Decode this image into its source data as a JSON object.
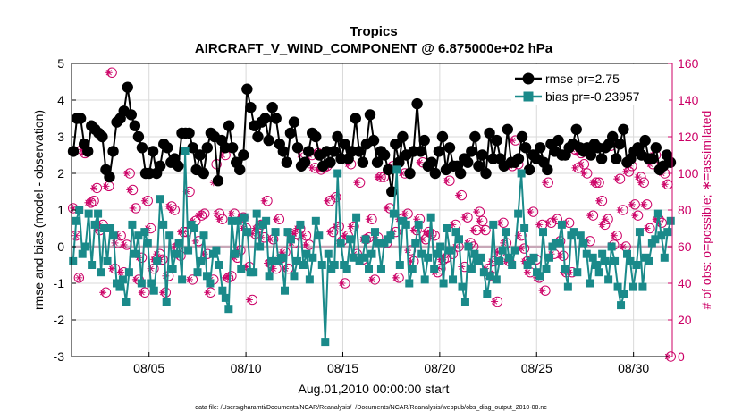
{
  "chart_data": {
    "type": "line",
    "title": "Tropics",
    "subtitle": "AIRCRAFT_V_WIND_COMPONENT @ 6.875000e+02 hPa",
    "xlabel": "Aug.01,2010 00:00:00 start",
    "ylabel": "rmse and bias (model - observation)",
    "ylabel_right": "# of obs: o=possible; ∗=assimilated",
    "xlim": [
      1,
      32
    ],
    "ylim": [
      -3,
      5
    ],
    "ylim_right": [
      0,
      160
    ],
    "x_ticks": [
      5,
      10,
      15,
      20,
      25,
      30
    ],
    "x_tick_labels": [
      "08/05",
      "08/10",
      "08/15",
      "08/20",
      "08/25",
      "08/30"
    ],
    "y_ticks": [
      -3,
      -2,
      -1,
      0,
      1,
      2,
      3,
      4,
      5
    ],
    "y_ticks_right": [
      0,
      20,
      40,
      60,
      80,
      100,
      120,
      140,
      160
    ],
    "footnote": "data file: /Users/gharamti/Documents/NCAR/Reanalysis/~/Documents/NCAR/Reanalysis/webpub/obs_diag_output_2010-08.nc",
    "legend_position": "top-right",
    "colors": {
      "rmse": "#000000",
      "bias": "#1a8a8a",
      "obs": "#cc0066",
      "zero_line": "#c8a8b8"
    },
    "series": [
      {
        "name": "rmse",
        "legend": "rmse pr=2.75",
        "values": [
          2.6,
          3.5,
          3.5,
          2.8,
          2.6,
          3.3,
          3.2,
          3.1,
          3.0,
          2.1,
          1.9,
          2.6,
          3.4,
          3.5,
          3.7,
          4.35,
          3.6,
          3.3,
          3.0,
          2.7,
          2.0,
          2.0,
          2.6,
          2.0,
          2.2,
          2.8,
          2.7,
          2.3,
          2.4,
          2.2,
          3.1,
          3.1,
          3.1,
          2.7,
          2.1,
          2.5,
          2.0,
          2.7,
          3.1,
          3.0,
          1.8,
          2.9,
          2.7,
          3.3,
          2.7,
          2.3,
          2.1,
          2.5,
          4.3,
          3.8,
          3.3,
          3.0,
          3.4,
          3.5,
          2.9,
          3.8,
          3.5,
          2.8,
          2.6,
          2.3,
          3.1,
          3.4,
          2.7,
          2.2,
          2.3,
          2.6,
          3.1,
          3.0,
          2.5,
          2.2,
          2.6,
          2.3,
          2.6,
          3.0,
          2.4,
          2.8,
          2.4,
          2.6,
          3.5,
          2.6,
          2.3,
          2.8,
          3.6,
          2.9,
          2.3,
          2.6,
          2.5,
          2.1,
          1.5,
          2.8,
          2.3,
          3.0,
          2.5,
          2.0,
          2.6,
          3.9,
          2.6,
          2.9,
          2.2,
          2.3,
          2.0,
          2.6,
          3.0,
          2.1,
          2.7,
          2.2,
          2.2,
          2.0,
          2.4,
          2.3,
          2.6,
          3.0,
          2.2,
          2.5,
          2.0,
          3.1,
          2.4,
          2.9,
          2.4,
          2.2,
          3.2,
          2.3,
          2.3,
          2.4,
          3.0,
          2.7,
          2.1,
          2.5,
          2.4,
          2.7,
          2.3,
          2.1,
          2.8,
          2.6,
          2.9,
          2.5,
          2.5,
          2.7,
          2.8,
          3.2,
          2.7,
          2.6,
          2.7,
          2.5,
          2.8,
          2.7,
          2.4,
          2.7,
          2.8,
          3.0,
          2.4,
          2.8,
          3.2,
          2.3,
          2.4,
          2.6,
          2.7,
          2.5,
          2.9,
          2.4,
          2.4,
          2.7,
          2.1,
          2.2,
          2.5,
          2.3
        ]
      },
      {
        "name": "bias",
        "legend": "bias pr=-0.23957",
        "values": [
          -0.4,
          0.7,
          1.0,
          -0.2,
          0.0,
          0.9,
          -0.5,
          0.6,
          0.9,
          -0.7,
          0.5,
          -0.4,
          0.5,
          0.3,
          -1.0,
          -1.1,
          -0.9,
          -1.5,
          -0.7,
          0.6,
          -0.2,
          0.3,
          -1.0,
          0.4,
          0.1,
          -1.0,
          -1.2,
          -0.4,
          1.3,
          0.6,
          -1.5,
          0.3,
          -0.6,
          -0.2,
          0.1,
          -0.9,
          2.6,
          -0.1,
          0.6,
          0.5,
          -0.7,
          -0.4,
          0.3,
          -0.8,
          -1.0,
          -0.2,
          -0.1,
          -0.5,
          -1.2,
          -1.4,
          -1.7,
          0.7,
          -0.2,
          0.7,
          -0.6,
          0.8,
          0.4,
          -0.7,
          -0.7,
          0.9,
          0.0,
          0.6,
          0.7,
          -0.8,
          -0.4,
          0.4,
          -0.4,
          -0.3,
          -1.2,
          0.4,
          0.2,
          -0.8,
          -0.4,
          0.6,
          -0.5,
          -0.2,
          -0.9,
          -0.3,
          0.7,
          0.3,
          -0.5,
          -2.6,
          -0.2,
          -0.6,
          -0.5,
          2.0,
          0.1,
          -0.5,
          -0.6,
          0.2,
          -0.3,
          0.8,
          -0.4,
          -0.3,
          0.2,
          -0.6,
          -0.2,
          0.4,
          0.1,
          -0.6,
          0.1,
          0.2,
          0.3,
          0.9,
          2.1,
          -0.5,
          0.7,
          0.6,
          -1.0,
          -0.6,
          0.1,
          0.6,
          -0.2,
          -0.9,
          -0.3,
          0.8,
          -0.6,
          -0.2,
          0.0,
          -1.0,
          0.5,
          -0.1,
          -0.9,
          0.4,
          0.2,
          -1.1,
          -1.5,
          0.0,
          -0.6,
          -0.2,
          -0.4,
          -0.3,
          -0.7,
          -1.3,
          -0.8,
          0.6,
          -0.9,
          -0.4,
          -0.1,
          0.4,
          -0.3,
          -0.5,
          -0.1,
          0.9,
          2.0,
          0.5,
          -0.5,
          -0.4,
          -0.3,
          -0.7,
          -0.8,
          0.4,
          -0.6,
          -0.3,
          0.0,
          0.1,
          0.1,
          0.6,
          -0.6,
          -1.1,
          0.3,
          0.4,
          -0.7,
          0.3,
          0.1,
          -0.2,
          -1.0,
          -0.3,
          -0.5,
          -0.7,
          -0.2,
          -0.4,
          -0.9,
          0.0,
          -0.4,
          -1.1,
          -1.6,
          -1.3,
          -0.2,
          -0.4,
          -1.1,
          -0.5,
          0.4,
          -1.1,
          -0.3,
          -0.4,
          0.1,
          0.2,
          0.9,
          0.3,
          -0.3,
          0.4,
          0.7
        ]
      },
      {
        "name": "obs_possible",
        "values": [
          81,
          66,
          43,
          113,
          111,
          112,
          84,
          85,
          92,
          69,
          72,
          35,
          93,
          155,
          48,
          62,
          66,
          46,
          61,
          100,
          91,
          81,
          42,
          54,
          35,
          85,
          70,
          48,
          53,
          56,
          53,
          35,
          44,
          82,
          80,
          60,
          55,
          68,
          68,
          90,
          42,
          74,
          63,
          77,
          78,
          56,
          35,
          42,
          105,
          78,
          75,
          110,
          43,
          44,
          78,
          54,
          58,
          76,
          70,
          49,
          31,
          67,
          70,
          72,
          65,
          85,
          51,
          64,
          48,
          75,
          54,
          57,
          48,
          67,
          62,
          67,
          70,
          110,
          66,
          61,
          110,
          103,
          111,
          102,
          103,
          104,
          85,
          68,
          87,
          71,
          63,
          40,
          66,
          105,
          71,
          56,
          95,
          53,
          64,
          65,
          75,
          42,
          65,
          98,
          98,
          62,
          81,
          104,
          68,
          43,
          75,
          100,
          78,
          58,
          52,
          69,
          75,
          106,
          64,
          68,
          67,
          66,
          46,
          48,
          53,
          54,
          96,
          56,
          72,
          60,
          88,
          49,
          76,
          62,
          60,
          69,
          79,
          74,
          69,
          48,
          44,
          52,
          30,
          57,
          73,
          62,
          52,
          104,
          118,
          105,
          66,
          59,
          52,
          46,
          79,
          53,
          43,
          72,
          36,
          95,
          73,
          56,
          75,
          63,
          55,
          46,
          73,
          46,
          113,
          103,
          111,
          105,
          100,
          63,
          77,
          95,
          95,
          85,
          72,
          75,
          115,
          61,
          66,
          97,
          80,
          60,
          101,
          104,
          83,
          77,
          98,
          95,
          83,
          70,
          105,
          110,
          75,
          73,
          100,
          94,
          0
        ]
      },
      {
        "name": "obs_assimilated",
        "values": [
          81,
          66,
          43,
          113,
          111,
          84,
          85,
          92,
          69,
          72,
          35,
          93,
          155,
          48,
          62,
          66,
          46,
          61,
          100,
          91,
          81,
          42,
          54,
          35,
          85,
          70,
          48,
          53,
          56,
          53,
          35,
          44,
          82,
          80,
          60,
          55,
          68,
          68,
          90,
          42,
          74,
          63,
          77,
          78,
          56,
          35,
          42,
          95,
          78,
          75,
          110,
          43,
          44,
          78,
          54,
          58,
          76,
          70,
          49,
          31,
          67,
          70,
          72,
          65,
          85,
          51,
          64,
          48,
          75,
          54,
          57,
          48,
          67,
          62,
          67,
          70,
          110,
          66,
          61,
          110,
          103,
          111,
          102,
          103,
          104,
          85,
          68,
          87,
          71,
          63,
          40,
          66,
          105,
          71,
          56,
          95,
          53,
          64,
          65,
          75,
          42,
          65,
          98,
          98,
          62,
          81,
          104,
          68,
          43,
          75,
          100,
          78,
          58,
          52,
          69,
          75,
          106,
          64,
          68,
          67,
          66,
          46,
          48,
          53,
          54,
          96,
          56,
          72,
          60,
          88,
          49,
          76,
          62,
          60,
          69,
          79,
          74,
          69,
          48,
          44,
          52,
          30,
          57,
          73,
          62,
          52,
          104,
          118,
          105,
          66,
          59,
          52,
          46,
          79,
          53,
          43,
          72,
          36,
          95,
          73,
          56,
          75,
          63,
          55,
          46,
          73,
          46,
          113,
          103,
          111,
          105,
          100,
          63,
          77,
          95,
          95,
          85,
          72,
          75,
          115,
          61,
          66,
          97,
          80,
          60,
          101,
          104,
          83,
          77,
          98,
          95,
          83,
          70,
          105,
          110,
          75,
          73,
          100,
          94,
          0
        ]
      }
    ]
  }
}
